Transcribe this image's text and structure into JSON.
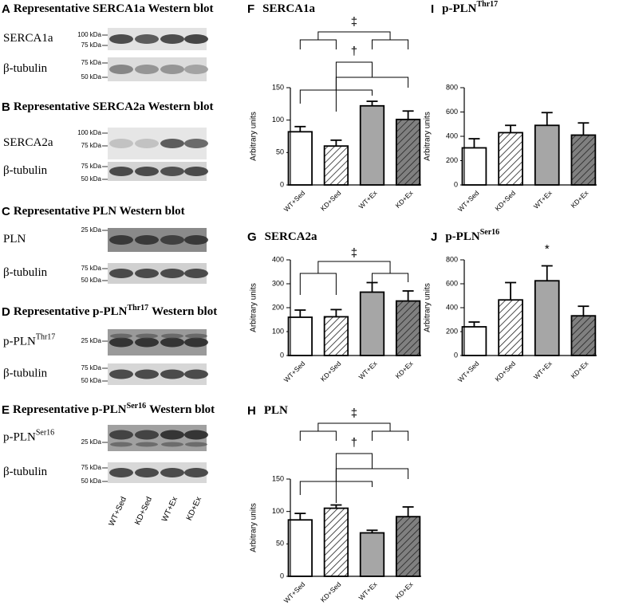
{
  "blots": [
    {
      "label": "A",
      "title": "Representative SERCA1a Western blot",
      "rows": [
        {
          "name": "SERCA1a",
          "markers": [
            "100 kDa",
            "75 kDa"
          ]
        },
        {
          "name": "β-tubulin",
          "markers": [
            "75 kDa",
            "50 kDa"
          ]
        }
      ]
    },
    {
      "label": "B",
      "title": "Representative SERCA2a Western blot",
      "rows": [
        {
          "name": "SERCA2a",
          "markers": [
            "100 kDa",
            "75 kDa"
          ]
        },
        {
          "name": "β-tubulin",
          "markers": [
            "75 kDa",
            "50 kDa"
          ]
        }
      ]
    },
    {
      "label": "C",
      "title": "Representative PLN Western blot",
      "rows": [
        {
          "name": "PLN",
          "markers": [
            "25 kDa"
          ]
        },
        {
          "name": "β-tubulin",
          "markers": [
            "75 kDa",
            "50 kDa"
          ]
        }
      ]
    },
    {
      "label": "D",
      "title": "Representative p-PLN",
      "title_sup": "Thr17",
      "title_end": "Western blot",
      "rows": [
        {
          "name": "p-PLN",
          "name_sup": "Thr17",
          "markers": [
            "25 kDa"
          ]
        },
        {
          "name": "β-tubulin",
          "markers": [
            "75 kDa",
            "50 kDa"
          ]
        }
      ]
    },
    {
      "label": "E",
      "title": "Representative p-PLN",
      "title_sup": "Ser16",
      "title_end": "Western blot",
      "rows": [
        {
          "name": "p-PLN",
          "name_sup": "Ser16",
          "markers": [
            "25 kDa"
          ]
        },
        {
          "name": "β-tubulin",
          "markers": [
            "75 kDa",
            "50 kDa"
          ]
        }
      ]
    }
  ],
  "lanes": [
    "WT+Sed",
    "KD+Sed",
    "WT+Ex",
    "KD+Ex"
  ],
  "chart_data": [
    {
      "type": "bar",
      "label": "F",
      "title": "SERCA1a",
      "y_label": "Arbitrary units",
      "categories": [
        "WT+Sed",
        "KD+Sed",
        "WT+Ex",
        "KD+Ex"
      ],
      "values": [
        82,
        60,
        122,
        101
      ],
      "errors": [
        8,
        9,
        7,
        13
      ],
      "colors": [
        "#ffffff",
        "#ffffff",
        "#a6a6a6",
        "#808080"
      ],
      "hatched": [
        false,
        true,
        false,
        true
      ],
      "ylim": [
        0,
        150
      ],
      "yticks": [
        0,
        50,
        100,
        150
      ],
      "annotations": [
        "‡",
        "†"
      ]
    },
    {
      "type": "bar",
      "label": "I",
      "title": "p-PLN",
      "title_sup": "Thr17",
      "y_label": "Arbitrary units",
      "categories": [
        "WT+Sed",
        "KD+Sed",
        "WT+Ex",
        "KD+Ex"
      ],
      "values": [
        305,
        430,
        490,
        410
      ],
      "errors": [
        75,
        60,
        105,
        100
      ],
      "colors": [
        "#ffffff",
        "#ffffff",
        "#a6a6a6",
        "#808080"
      ],
      "hatched": [
        false,
        true,
        false,
        true
      ],
      "ylim": [
        0,
        800
      ],
      "yticks": [
        0,
        200,
        400,
        600,
        800
      ]
    },
    {
      "type": "bar",
      "label": "G",
      "title": "SERCA2a",
      "y_label": "Arbitrary units",
      "categories": [
        "WT+Sed",
        "KD+Sed",
        "WT+Ex",
        "KD+Ex"
      ],
      "values": [
        160,
        162,
        265,
        228
      ],
      "errors": [
        30,
        30,
        40,
        42
      ],
      "colors": [
        "#ffffff",
        "#ffffff",
        "#a6a6a6",
        "#808080"
      ],
      "hatched": [
        false,
        true,
        false,
        true
      ],
      "ylim": [
        0,
        400
      ],
      "yticks": [
        0,
        100,
        200,
        300,
        400
      ],
      "annotations": [
        "‡"
      ]
    },
    {
      "type": "bar",
      "label": "J",
      "title": "p-PLN",
      "title_sup": "Ser16",
      "y_label": "Arbitrary units",
      "categories": [
        "WT+Sed",
        "KD+Sed",
        "WT+Ex",
        "KD+Ex"
      ],
      "values": [
        240,
        465,
        625,
        332
      ],
      "errors": [
        40,
        145,
        125,
        80
      ],
      "colors": [
        "#ffffff",
        "#ffffff",
        "#a6a6a6",
        "#808080"
      ],
      "hatched": [
        false,
        true,
        false,
        true
      ],
      "ylim": [
        0,
        800
      ],
      "yticks": [
        0,
        200,
        400,
        600,
        800
      ],
      "annotations": [
        "*"
      ]
    },
    {
      "type": "bar",
      "label": "H",
      "title": "PLN",
      "y_label": "Arbitrary units",
      "categories": [
        "WT+Sed",
        "KD+Sed",
        "WT+Ex",
        "KD+Ex"
      ],
      "values": [
        87,
        105,
        67,
        92
      ],
      "errors": [
        10,
        5,
        4,
        15
      ],
      "colors": [
        "#ffffff",
        "#ffffff",
        "#a6a6a6",
        "#808080"
      ],
      "hatched": [
        false,
        true,
        false,
        true
      ],
      "ylim": [
        0,
        150
      ],
      "yticks": [
        0,
        50,
        100,
        150
      ],
      "annotations": [
        "‡",
        "†"
      ]
    }
  ]
}
